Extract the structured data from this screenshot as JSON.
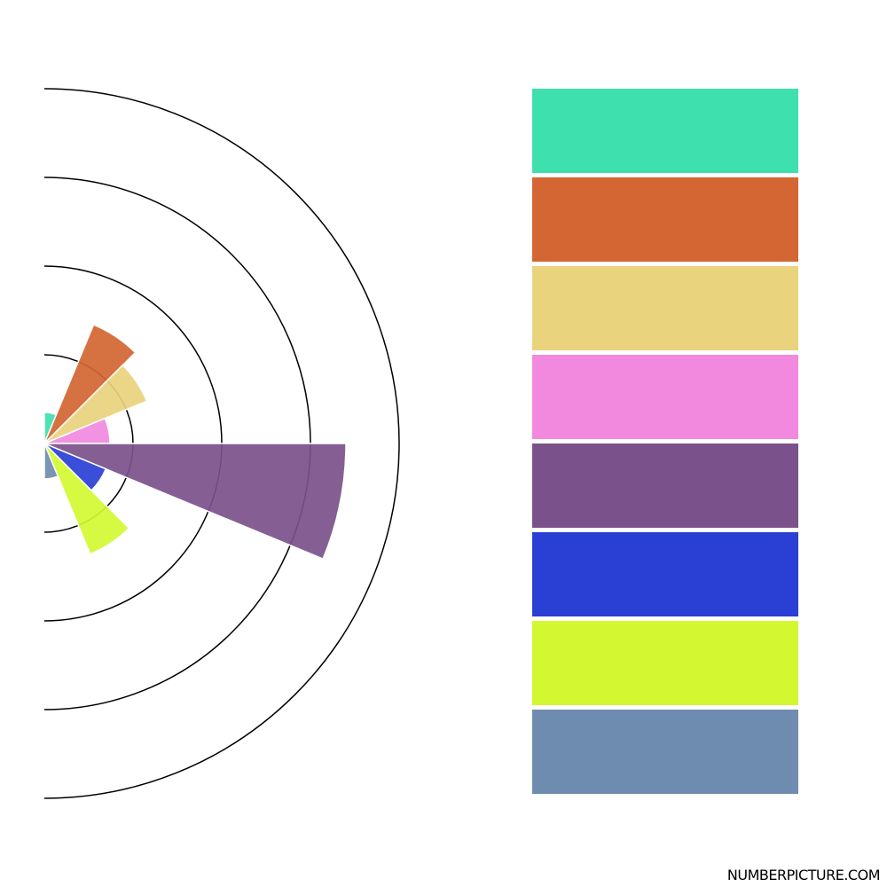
{
  "watermark": "NUMBERPICTURE.COM",
  "chart_data": {
    "type": "polar-area",
    "title": "",
    "radial_range": [
      0,
      4
    ],
    "rings": [
      1,
      2,
      3,
      4
    ],
    "angle_per_sector_deg": 22.5,
    "series": [
      {
        "color": "#3ee0ad",
        "value": 0.35
      },
      {
        "color": "#d36632",
        "value": 1.45
      },
      {
        "color": "#e9d37d",
        "value": 1.25
      },
      {
        "color": "#f289df",
        "value": 0.74
      },
      {
        "color": "#7b518b",
        "value": 3.4
      },
      {
        "color": "#2a3fd4",
        "value": 0.75
      },
      {
        "color": "#d3f832",
        "value": 1.35
      },
      {
        "color": "#6e8caf",
        "value": 0.4
      }
    ],
    "legend_placement": "right"
  }
}
